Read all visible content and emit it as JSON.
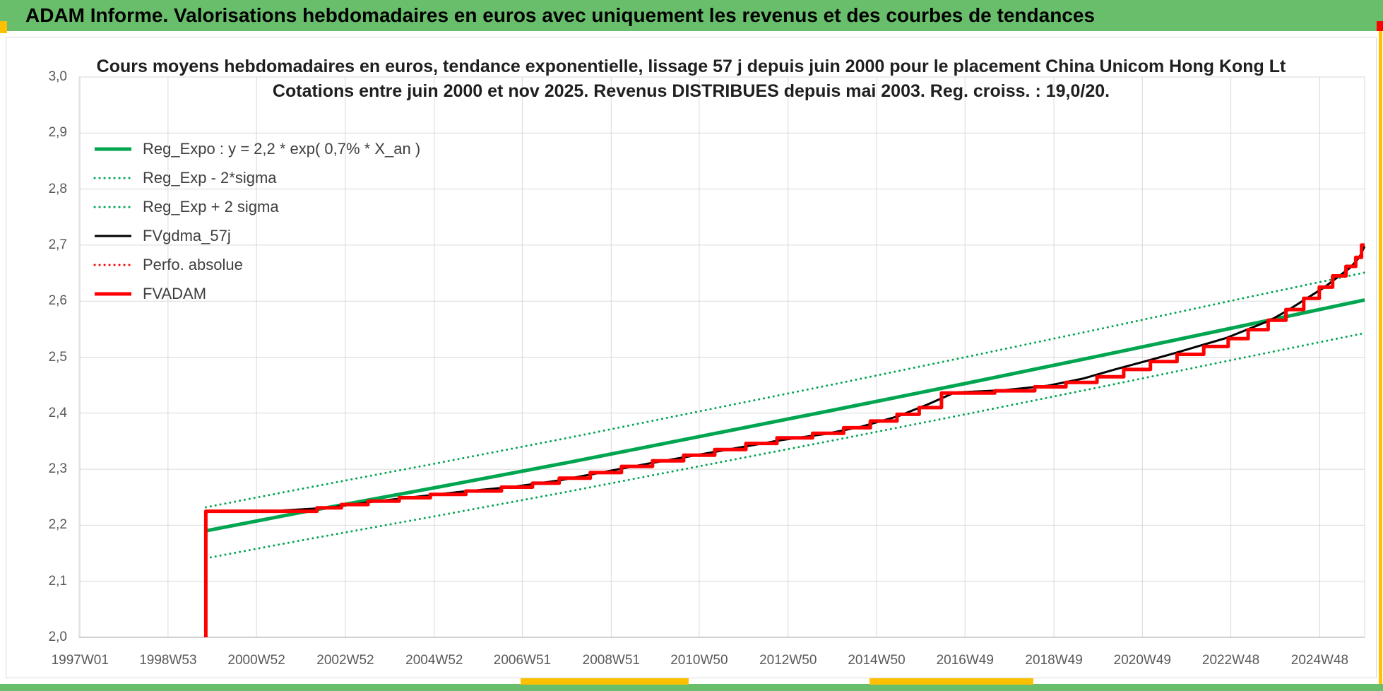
{
  "header": {
    "title": "ADAM Informe. Valorisations hebdomadaires en euros avec uniquement les revenus et des courbes de tendances"
  },
  "colors": {
    "header_green": "#68BE6A",
    "chart_green": "#00A550",
    "red": "#FF0000",
    "black": "#000000",
    "yellow": "#FFC000",
    "gridline": "#D9D9D9",
    "axis_text": "#595959"
  },
  "chart_data": {
    "type": "line",
    "title": "Cours moyens hebdomadaires en euros, tendance exponentielle, lissage 57 j depuis juin 2000 pour le placement China Unicom Hong Kong Lt",
    "subtitle": "Cotations entre juin 2000 et nov 2025. Revenus DISTRIBUES depuis mai 2003. Reg. croiss. : 19,0/20.",
    "xlim": [
      1997.0,
      2025.92
    ],
    "ylim": [
      2.0,
      3.0
    ],
    "grid": true,
    "legend_position": "top-left-inside",
    "y_ticks": [
      {
        "v": 2.0,
        "label": "2,0"
      },
      {
        "v": 2.1,
        "label": "2,1"
      },
      {
        "v": 2.2,
        "label": "2,2"
      },
      {
        "v": 2.3,
        "label": "2,3"
      },
      {
        "v": 2.4,
        "label": "2,4"
      },
      {
        "v": 2.5,
        "label": "2,5"
      },
      {
        "v": 2.6,
        "label": "2,6"
      },
      {
        "v": 2.7,
        "label": "2,7"
      },
      {
        "v": 2.8,
        "label": "2,8"
      },
      {
        "v": 2.9,
        "label": "2,9"
      },
      {
        "v": 3.0,
        "label": "3,0"
      }
    ],
    "x_ticks": [
      {
        "v": 1997.02,
        "label": "1997W01"
      },
      {
        "v": 1999.0,
        "label": "1998W53"
      },
      {
        "v": 2000.99,
        "label": "2000W52"
      },
      {
        "v": 2002.99,
        "label": "2002W52"
      },
      {
        "v": 2004.99,
        "label": "2004W52"
      },
      {
        "v": 2006.97,
        "label": "2006W51"
      },
      {
        "v": 2008.97,
        "label": "2008W51"
      },
      {
        "v": 2010.95,
        "label": "2010W50"
      },
      {
        "v": 2012.95,
        "label": "2012W50"
      },
      {
        "v": 2014.94,
        "label": "2014W50"
      },
      {
        "v": 2016.93,
        "label": "2016W49"
      },
      {
        "v": 2018.93,
        "label": "2018W49"
      },
      {
        "v": 2020.92,
        "label": "2020W49"
      },
      {
        "v": 2022.91,
        "label": "2022W48"
      },
      {
        "v": 2024.91,
        "label": "2024W48"
      }
    ],
    "legend": [
      {
        "label": "Reg_Expo : y = 2,2 * exp( 0,7% *  X_an )",
        "color": "#00A550",
        "dash": "solid",
        "width": 5
      },
      {
        "label": "Reg_Exp - 2*sigma",
        "color": "#00A550",
        "dash": "dotted",
        "width": 3
      },
      {
        "label": "Reg_Exp + 2 sigma",
        "color": "#00A550",
        "dash": "dotted",
        "width": 3
      },
      {
        "label": "FVgdma_57j",
        "color": "#000000",
        "dash": "solid",
        "width": 3
      },
      {
        "label": "Perfo. absolue",
        "color": "#FF0000",
        "dash": "dotted",
        "width": 3
      },
      {
        "label": "FVADAM",
        "color": "#FF0000",
        "dash": "solid",
        "width": 5
      }
    ],
    "series": [
      {
        "name": "reg_exp_minus_2sigma",
        "color": "#00A550",
        "dash": "dotted",
        "width": 3,
        "step": false,
        "points": [
          [
            1999.85,
            2.141
          ],
          [
            2002,
            2.173
          ],
          [
            2005,
            2.216
          ],
          [
            2008,
            2.26
          ],
          [
            2011,
            2.306
          ],
          [
            2014,
            2.352
          ],
          [
            2017,
            2.399
          ],
          [
            2020,
            2.447
          ],
          [
            2023,
            2.496
          ],
          [
            2025.92,
            2.543
          ]
        ]
      },
      {
        "name": "reg_exp_plus_2sigma",
        "color": "#00A550",
        "dash": "dotted",
        "width": 3,
        "step": false,
        "points": [
          [
            1999.85,
            2.232
          ],
          [
            2002,
            2.265
          ],
          [
            2005,
            2.31
          ],
          [
            2008,
            2.356
          ],
          [
            2011,
            2.404
          ],
          [
            2014,
            2.452
          ],
          [
            2017,
            2.501
          ],
          [
            2020,
            2.551
          ],
          [
            2023,
            2.602
          ],
          [
            2025.92,
            2.651
          ]
        ]
      },
      {
        "name": "reg_expo",
        "color": "#00A550",
        "dash": "solid",
        "width": 5,
        "step": false,
        "points": [
          [
            1999.85,
            2.19
          ],
          [
            2002,
            2.223
          ],
          [
            2005,
            2.267
          ],
          [
            2008,
            2.312
          ],
          [
            2011,
            2.359
          ],
          [
            2014,
            2.406
          ],
          [
            2017,
            2.454
          ],
          [
            2020,
            2.503
          ],
          [
            2023,
            2.553
          ],
          [
            2025.92,
            2.602
          ]
        ]
      },
      {
        "name": "perfo_absolue",
        "color": "#FF0000",
        "dash": "dotted",
        "width": 3,
        "step": false,
        "points": [
          [
            1999.85,
            2.225
          ],
          [
            2001.5,
            2.226
          ],
          [
            2002.6,
            2.231
          ],
          [
            2003.5,
            2.241
          ],
          [
            2004.5,
            2.25
          ],
          [
            2005.5,
            2.259
          ],
          [
            2006.8,
            2.269
          ],
          [
            2007.8,
            2.28
          ],
          [
            2008.8,
            2.295
          ],
          [
            2009.8,
            2.31
          ],
          [
            2010.8,
            2.324
          ],
          [
            2011.8,
            2.338
          ],
          [
            2012.8,
            2.352
          ],
          [
            2013.8,
            2.363
          ],
          [
            2014.6,
            2.376
          ],
          [
            2015.4,
            2.394
          ],
          [
            2016.1,
            2.416
          ],
          [
            2016.7,
            2.437
          ],
          [
            2017.8,
            2.441
          ],
          [
            2018.8,
            2.449
          ],
          [
            2019.6,
            2.462
          ],
          [
            2020.3,
            2.478
          ],
          [
            2021.0,
            2.493
          ],
          [
            2021.6,
            2.506
          ],
          [
            2022.2,
            2.52
          ],
          [
            2022.8,
            2.534
          ],
          [
            2023.3,
            2.55
          ],
          [
            2023.8,
            2.566
          ],
          [
            2024.2,
            2.584
          ],
          [
            2024.6,
            2.604
          ],
          [
            2025.0,
            2.624
          ],
          [
            2025.3,
            2.642
          ],
          [
            2025.6,
            2.66
          ],
          [
            2025.8,
            2.678
          ],
          [
            2025.92,
            2.698
          ]
        ]
      },
      {
        "name": "fvgdma_57j",
        "color": "#000000",
        "dash": "solid",
        "width": 3,
        "step": false,
        "points": [
          [
            1999.85,
            2.225
          ],
          [
            2001.5,
            2.226
          ],
          [
            2002.6,
            2.231
          ],
          [
            2003.5,
            2.241
          ],
          [
            2004.5,
            2.25
          ],
          [
            2005.5,
            2.259
          ],
          [
            2006.8,
            2.269
          ],
          [
            2007.8,
            2.28
          ],
          [
            2008.8,
            2.295
          ],
          [
            2009.8,
            2.31
          ],
          [
            2010.8,
            2.324
          ],
          [
            2011.8,
            2.338
          ],
          [
            2012.8,
            2.352
          ],
          [
            2013.8,
            2.363
          ],
          [
            2014.6,
            2.376
          ],
          [
            2015.4,
            2.394
          ],
          [
            2016.1,
            2.416
          ],
          [
            2016.7,
            2.437
          ],
          [
            2017.8,
            2.441
          ],
          [
            2018.8,
            2.449
          ],
          [
            2019.6,
            2.462
          ],
          [
            2020.3,
            2.478
          ],
          [
            2021.0,
            2.493
          ],
          [
            2021.6,
            2.506
          ],
          [
            2022.2,
            2.52
          ],
          [
            2022.8,
            2.534
          ],
          [
            2023.3,
            2.55
          ],
          [
            2023.8,
            2.566
          ],
          [
            2024.2,
            2.584
          ],
          [
            2024.6,
            2.604
          ],
          [
            2025.0,
            2.624
          ],
          [
            2025.3,
            2.642
          ],
          [
            2025.6,
            2.66
          ],
          [
            2025.8,
            2.678
          ],
          [
            2025.92,
            2.698
          ]
        ]
      },
      {
        "name": "fvadam",
        "color": "#FF0000",
        "dash": "solid",
        "width": 5,
        "step": true,
        "points": [
          [
            1999.85,
            2.0
          ],
          [
            1999.85,
            2.225
          ],
          [
            2002.35,
            2.231
          ],
          [
            2002.9,
            2.237
          ],
          [
            2003.5,
            2.243
          ],
          [
            2004.2,
            2.249
          ],
          [
            2004.9,
            2.255
          ],
          [
            2005.7,
            2.261
          ],
          [
            2006.5,
            2.268
          ],
          [
            2007.2,
            2.275
          ],
          [
            2007.8,
            2.284
          ],
          [
            2008.5,
            2.294
          ],
          [
            2009.2,
            2.305
          ],
          [
            2009.9,
            2.315
          ],
          [
            2010.6,
            2.325
          ],
          [
            2011.3,
            2.335
          ],
          [
            2012.0,
            2.346
          ],
          [
            2012.7,
            2.356
          ],
          [
            2013.5,
            2.364
          ],
          [
            2014.2,
            2.374
          ],
          [
            2014.8,
            2.386
          ],
          [
            2015.4,
            2.398
          ],
          [
            2015.9,
            2.41
          ],
          [
            2016.4,
            2.436
          ],
          [
            2017.6,
            2.44
          ],
          [
            2018.5,
            2.447
          ],
          [
            2019.2,
            2.455
          ],
          [
            2019.9,
            2.465
          ],
          [
            2020.5,
            2.478
          ],
          [
            2021.1,
            2.492
          ],
          [
            2021.7,
            2.505
          ],
          [
            2022.3,
            2.519
          ],
          [
            2022.85,
            2.533
          ],
          [
            2023.3,
            2.549
          ],
          [
            2023.75,
            2.566
          ],
          [
            2024.15,
            2.585
          ],
          [
            2024.55,
            2.605
          ],
          [
            2024.9,
            2.625
          ],
          [
            2025.2,
            2.645
          ],
          [
            2025.5,
            2.662
          ],
          [
            2025.72,
            2.678
          ],
          [
            2025.85,
            2.7
          ]
        ]
      }
    ]
  }
}
